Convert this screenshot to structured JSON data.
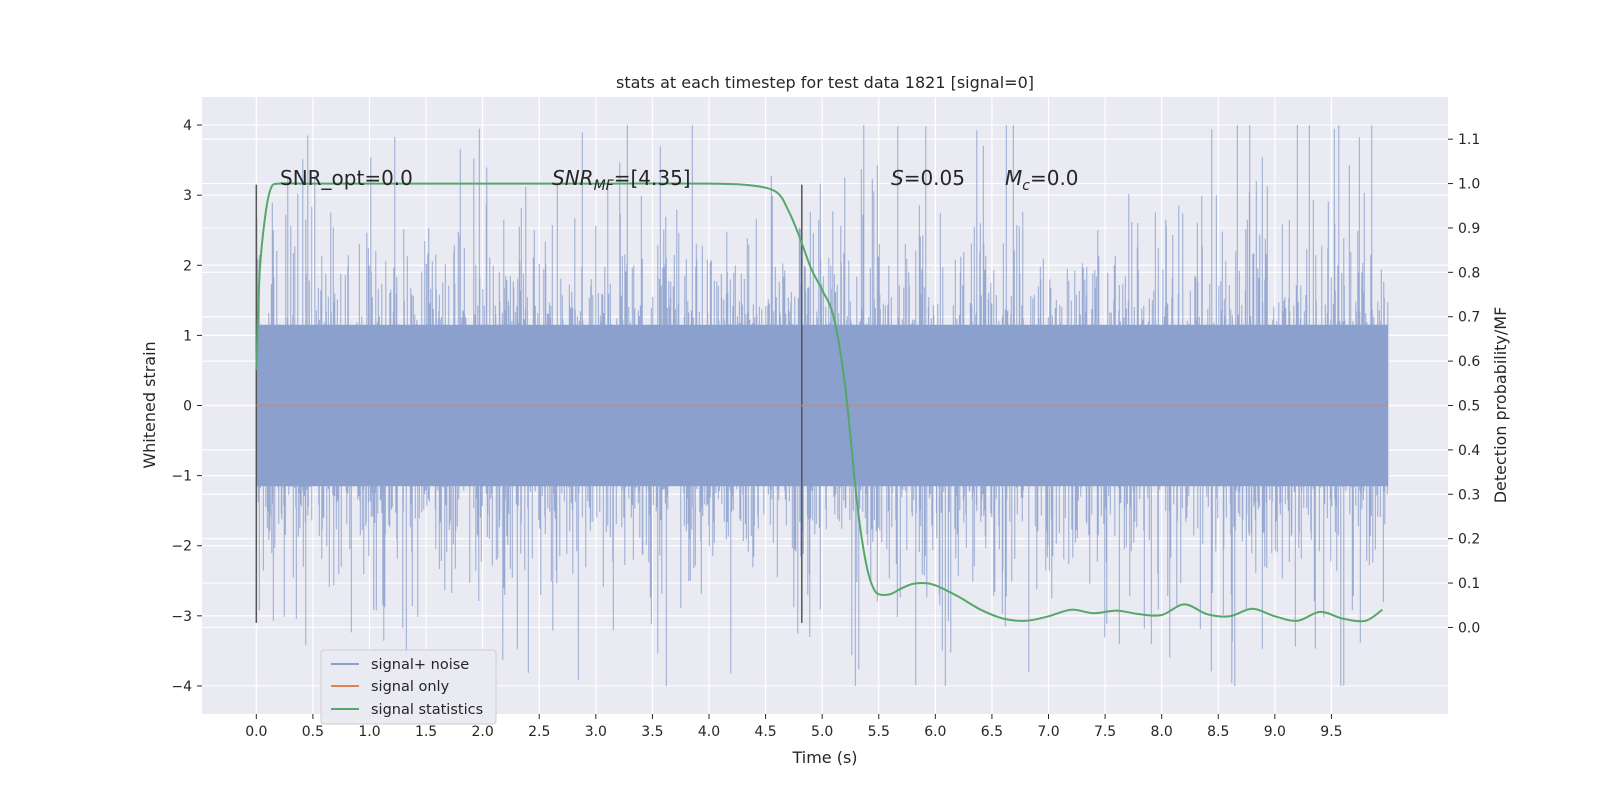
{
  "chart_data": {
    "type": "line",
    "title": "stats at each timestep for test data 1821 [signal=0]",
    "xlabel": "Time (s)",
    "ylabel": "Whitened strain",
    "y2label": "Detection probability/MF",
    "xlim": [
      -0.48,
      10.53
    ],
    "ylim": [
      -4.4,
      4.4
    ],
    "y2lim": [
      -0.195,
      1.195
    ],
    "xticks": [
      0.0,
      0.5,
      1.0,
      1.5,
      2.0,
      2.5,
      3.0,
      3.5,
      4.0,
      4.5,
      5.0,
      5.5,
      6.0,
      6.5,
      7.0,
      7.5,
      8.0,
      8.5,
      9.0,
      9.5
    ],
    "xtick_labels": [
      "0.0",
      "0.5",
      "1.0",
      "1.5",
      "2.0",
      "2.5",
      "3.0",
      "3.5",
      "4.0",
      "4.5",
      "5.0",
      "5.5",
      "6.0",
      "6.5",
      "7.0",
      "7.5",
      "8.0",
      "8.5",
      "9.0",
      "9.5"
    ],
    "yticks": [
      -4,
      -3,
      -2,
      -1,
      0,
      1,
      2,
      3,
      4
    ],
    "ytick_labels": [
      "−4",
      "−3",
      "−2",
      "−1",
      "0",
      "1",
      "2",
      "3",
      "4"
    ],
    "y2ticks": [
      0.0,
      0.1,
      0.2,
      0.3,
      0.4,
      0.5,
      0.6,
      0.7,
      0.8,
      0.9,
      1.0,
      1.1
    ],
    "y2tick_labels": [
      "0.0",
      "0.1",
      "0.2",
      "0.3",
      "0.4",
      "0.5",
      "0.6",
      "0.7",
      "0.8",
      "0.9",
      "1.0",
      "1.1"
    ],
    "grid": true,
    "legend_position": "lower-left",
    "noise_range": [
      0.0,
      10.0
    ],
    "series": [
      {
        "name": "signal+ noise",
        "color": "#8a9fcc",
        "axis": "left"
      },
      {
        "name": "signal only",
        "color": "#dd8452",
        "axis": "left",
        "x": [
          0.0,
          10.0
        ],
        "y": [
          0.0,
          0.0
        ]
      },
      {
        "name": "signal statistics",
        "color": "#55a868",
        "axis": "right",
        "x": [
          0.0,
          0.03,
          0.08,
          0.13,
          0.2,
          0.4,
          1.0,
          2.0,
          3.0,
          4.0,
          4.4,
          4.6,
          4.7,
          4.8,
          4.9,
          5.0,
          5.1,
          5.2,
          5.3,
          5.35,
          5.4,
          5.45,
          5.5,
          5.6,
          5.7,
          5.8,
          5.9,
          6.0,
          6.2,
          6.4,
          6.6,
          6.8,
          7.0,
          7.2,
          7.4,
          7.6,
          7.8,
          8.0,
          8.2,
          8.4,
          8.6,
          8.8,
          9.0,
          9.2,
          9.4,
          9.6,
          9.8,
          9.95
        ],
        "y": [
          0.58,
          0.8,
          0.93,
          0.99,
          1.0,
          1.0,
          1.0,
          1.0,
          1.0,
          1.0,
          0.995,
          0.98,
          0.94,
          0.88,
          0.81,
          0.76,
          0.7,
          0.55,
          0.3,
          0.2,
          0.13,
          0.09,
          0.075,
          0.075,
          0.088,
          0.098,
          0.1,
          0.095,
          0.07,
          0.04,
          0.02,
          0.015,
          0.025,
          0.04,
          0.032,
          0.038,
          0.03,
          0.028,
          0.052,
          0.03,
          0.025,
          0.042,
          0.025,
          0.015,
          0.035,
          0.02,
          0.015,
          0.04
        ]
      }
    ],
    "vlines": [
      {
        "x": 0.0,
        "y_range": [
          -3.1,
          3.15
        ],
        "color": "#555555"
      },
      {
        "x": 4.82,
        "y_range": [
          -3.1,
          3.15
        ],
        "color": "#555555"
      }
    ],
    "annotations": [
      {
        "text": "SNR_opt=0.0",
        "x": 0.2
      },
      {
        "text_main": "SNR",
        "text_sub": "MF",
        "text_rest": "=[4.35]",
        "x": 2.6
      },
      {
        "text_main": "S",
        "text_rest": "=0.05",
        "x": 5.6
      },
      {
        "text_main": "M",
        "text_sub": "c",
        "text_rest": "=0.0",
        "x": 6.62
      }
    ]
  }
}
